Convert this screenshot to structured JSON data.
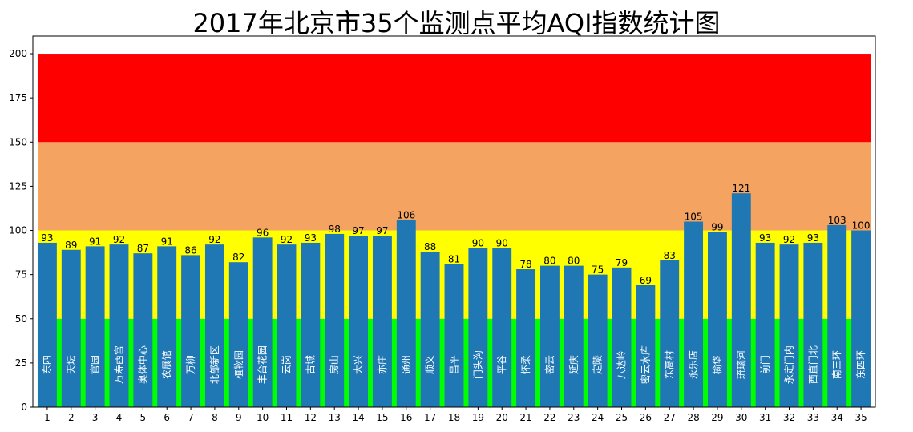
{
  "chart_data": {
    "type": "bar",
    "title": "2017年北京市35个监测点平均AQI指数统计图",
    "xlabel": "",
    "ylabel": "",
    "x": [
      1,
      2,
      3,
      4,
      5,
      6,
      7,
      8,
      9,
      10,
      11,
      12,
      13,
      14,
      15,
      16,
      17,
      18,
      19,
      20,
      21,
      22,
      23,
      24,
      25,
      26,
      27,
      28,
      29,
      30,
      31,
      32,
      33,
      34,
      35
    ],
    "categories": [
      "东四",
      "天坛",
      "官园",
      "万寿西宫",
      "奥体中心",
      "农展馆",
      "万柳",
      "北部新区",
      "植物园",
      "丰台花园",
      "云岗",
      "古城",
      "房山",
      "大兴",
      "亦庄",
      "通州",
      "顺义",
      "昌平",
      "门头沟",
      "平谷",
      "怀柔",
      "密云",
      "延庆",
      "定陵",
      "八达岭",
      "密云水库",
      "东高村",
      "永乐店",
      "榆垡",
      "琉璃河",
      "前门",
      "永定门内",
      "西直门北",
      "南三环",
      "东四环"
    ],
    "values": [
      93,
      89,
      91,
      92,
      87,
      91,
      86,
      92,
      82,
      96,
      92,
      93,
      98,
      97,
      97,
      106,
      88,
      81,
      90,
      90,
      78,
      80,
      80,
      75,
      79,
      69,
      83,
      105,
      99,
      121,
      93,
      92,
      93,
      103,
      100
    ],
    "ylim": [
      0,
      210
    ],
    "yticks": [
      0,
      25,
      50,
      75,
      100,
      125,
      150,
      175,
      200
    ],
    "grid": false,
    "background_bands": [
      {
        "from": 0,
        "to": 50,
        "color": "#00ff00"
      },
      {
        "from": 50,
        "to": 100,
        "color": "#ffff00"
      },
      {
        "from": 100,
        "to": 150,
        "color": "#f4a460"
      },
      {
        "from": 150,
        "to": 200,
        "color": "#ff0000"
      }
    ],
    "bar_color": "#1f77b4"
  }
}
